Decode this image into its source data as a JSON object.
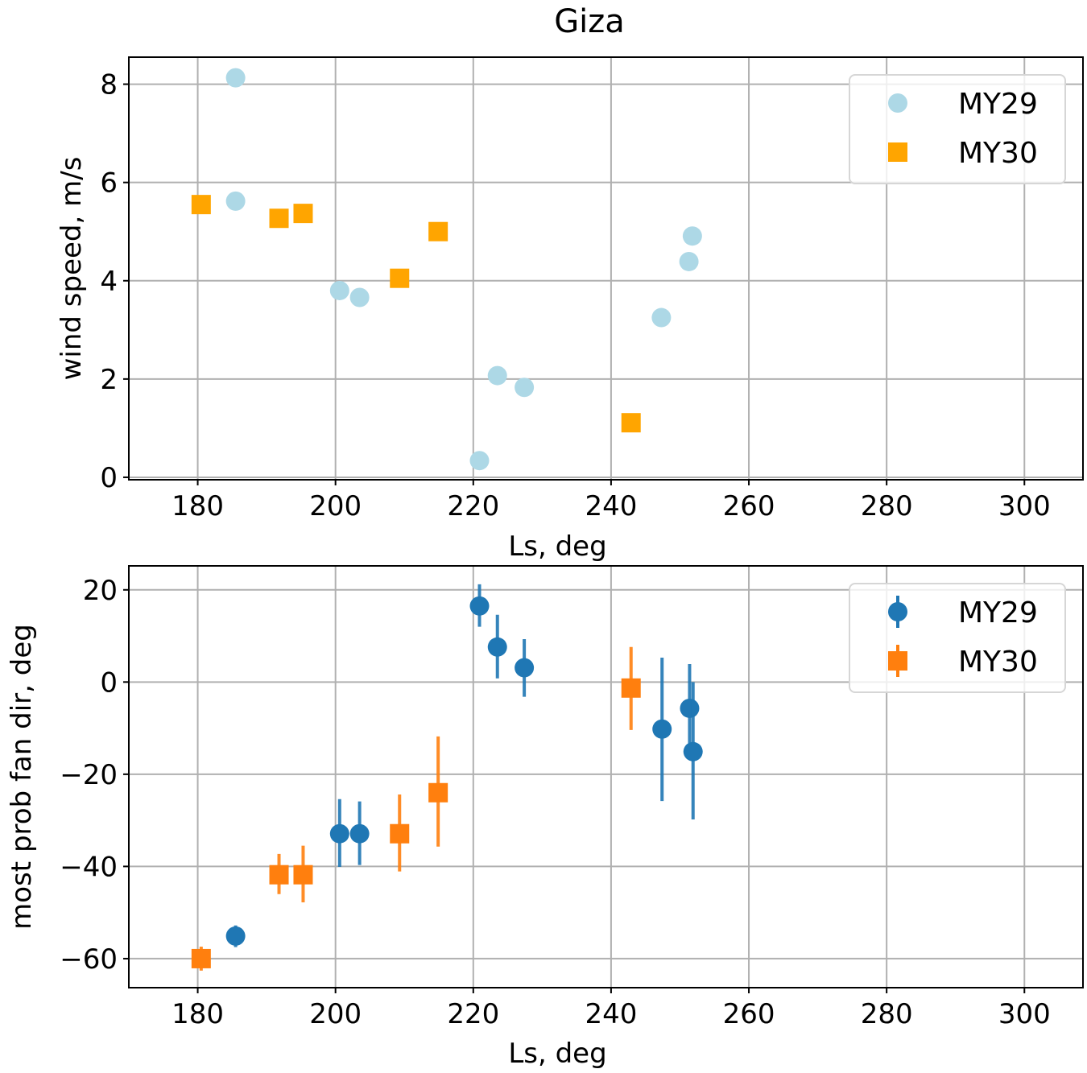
{
  "chart_data": [
    {
      "type": "scatter",
      "title": "Giza",
      "xlabel": "Ls, deg",
      "ylabel": "wind speed, m/s",
      "xlim": [
        170,
        308.5
      ],
      "ylim": [
        -0.05,
        8.55
      ],
      "xticks": [
        180,
        200,
        220,
        240,
        260,
        280,
        300
      ],
      "yticks": [
        0,
        2,
        4,
        6,
        8
      ],
      "grid": true,
      "legend_position": "top-right",
      "series": [
        {
          "name": "MY29",
          "marker": "circle",
          "color": "#ADD8E6",
          "x": [
            185.5,
            185.5,
            200.6,
            203.5,
            220.9,
            223.5,
            227.4,
            247.3,
            251.3,
            251.8
          ],
          "y": [
            8.13,
            5.62,
            3.8,
            3.66,
            0.34,
            2.07,
            1.83,
            3.25,
            4.39,
            4.91
          ]
        },
        {
          "name": "MY30",
          "marker": "square",
          "color": "#FFA500",
          "x": [
            180.5,
            191.8,
            195.3,
            209.3,
            214.9,
            242.9
          ],
          "y": [
            5.55,
            5.27,
            5.37,
            4.05,
            5.0,
            1.11
          ]
        }
      ]
    },
    {
      "type": "scatter",
      "title": "",
      "xlabel": "Ls, deg",
      "ylabel": "most prob fan dir, deg",
      "xlim": [
        170,
        308.5
      ],
      "ylim": [
        -66.3,
        25.2
      ],
      "xticks": [
        180,
        200,
        220,
        240,
        260,
        280,
        300
      ],
      "yticks": [
        20,
        0,
        -20,
        -40,
        -60
      ],
      "ytick_labels": [
        "20",
        "0",
        "−20",
        "−40",
        "−60"
      ],
      "grid": true,
      "legend_position": "top-right",
      "series": [
        {
          "name": "MY29",
          "marker": "circle",
          "color": "#1F77B4",
          "error_bars": true,
          "x": [
            185.5,
            200.6,
            203.5,
            220.9,
            223.5,
            227.4,
            247.4,
            251.4,
            251.9
          ],
          "y": [
            -55.1,
            -32.9,
            -32.9,
            16.5,
            7.6,
            3.1,
            -10.2,
            -5.7,
            -15.1
          ],
          "y_low": [
            -57.5,
            -40.1,
            -39.7,
            12.0,
            0.8,
            -3.2,
            -25.8,
            -15.3,
            -29.8
          ],
          "y_high": [
            -52.8,
            -25.4,
            -25.9,
            21.2,
            14.6,
            9.3,
            5.3,
            3.9,
            0.0
          ]
        },
        {
          "name": "MY30",
          "marker": "square",
          "color": "#FF7F0E",
          "error_bars": true,
          "x": [
            180.5,
            191.8,
            195.3,
            209.3,
            214.9,
            242.9
          ],
          "y": [
            -60.0,
            -41.8,
            -41.8,
            -32.9,
            -24.0,
            -1.3
          ],
          "y_low": [
            -62.6,
            -46.0,
            -47.8,
            -41.1,
            -35.7,
            -10.4
          ],
          "y_high": [
            -57.4,
            -37.3,
            -35.5,
            -24.4,
            -11.8,
            7.6
          ]
        }
      ]
    }
  ]
}
